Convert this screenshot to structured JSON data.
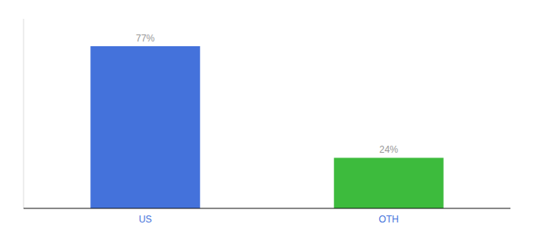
{
  "chart_data": {
    "type": "bar",
    "categories": [
      "US",
      "OTH"
    ],
    "values": [
      77,
      24
    ],
    "value_labels": [
      "77%",
      "24%"
    ],
    "colors": [
      "#4472db",
      "#3dbb3d"
    ],
    "ylim": [
      0,
      90
    ],
    "data_labels": true,
    "tick_labels": "x",
    "grid": false
  }
}
